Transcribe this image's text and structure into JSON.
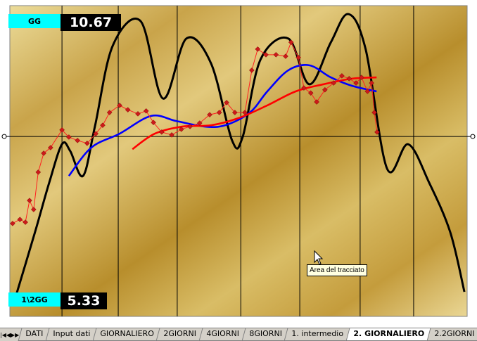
{
  "chart_data": {
    "type": "line",
    "xlim": [
      0,
      100
    ],
    "ylim": [
      0,
      100
    ],
    "xticks": [
      11.4,
      23.7,
      36.6,
      50.5,
      63.4,
      76.6,
      88.3
    ],
    "yticks": [
      57.9
    ],
    "grid": true,
    "series": [
      {
        "name": null,
        "style": "smooth",
        "color": "#000000",
        "x": [
          0.9,
          5.5,
          8.6,
          11.4,
          13.2,
          16.0,
          18.6,
          22.5,
          28.6,
          33.5,
          38.6,
          44.0,
          48.6,
          50.9,
          54.8,
          60.9,
          65.5,
          70.2,
          74.0,
          77.8,
          82.5,
          87.1,
          91.7,
          96.3,
          99.4
        ],
        "values": [
          4.5,
          27.1,
          43.0,
          55.4,
          53.2,
          45.2,
          61.1,
          87.1,
          95.0,
          70.1,
          89.4,
          81.4,
          56.6,
          57.7,
          82.6,
          89.4,
          74.7,
          88.2,
          97.3,
          86.0,
          47.5,
          55.4,
          43.0,
          27.1,
          7.9
        ]
      },
      {
        "name": null,
        "style": "smooth",
        "color": "#0000ff",
        "x": [
          12.9,
          17.8,
          24.0,
          30.9,
          36.3,
          42.5,
          47.1,
          52.5,
          56.3,
          60.9,
          65.5,
          70.2,
          74.8,
          80.2
        ],
        "values": [
          45.2,
          54.3,
          58.8,
          64.5,
          62.9,
          61.1,
          61.5,
          65.6,
          72.4,
          79.2,
          80.8,
          76.9,
          74.2,
          72.4
        ]
      },
      {
        "name": null,
        "style": "smooth",
        "color": "#ff0000",
        "x": [
          26.8,
          31.7,
          37.8,
          44.0,
          50.0,
          56.3,
          62.5,
          68.6,
          74.8,
          80.2
        ],
        "values": [
          53.8,
          58.8,
          61.1,
          61.5,
          63.8,
          67.9,
          72.4,
          74.7,
          76.5,
          76.9
        ]
      },
      {
        "name": null,
        "style": "markers",
        "color": "#cc1a1a",
        "x": [
          0.6,
          2.2,
          3.4,
          4.3,
          5.2,
          6.2,
          7.4,
          8.9,
          11.4,
          12.9,
          14.8,
          16.9,
          18.8,
          20.3,
          21.8,
          24.0,
          25.8,
          28.0,
          29.8,
          31.4,
          33.2,
          35.4,
          37.5,
          39.4,
          41.5,
          43.7,
          45.8,
          47.4,
          49.2,
          51.4,
          52.9,
          54.2,
          56.0,
          58.2,
          60.3,
          61.5,
          63.1,
          64.3,
          65.8,
          67.1,
          68.9,
          70.8,
          72.6,
          74.2,
          75.7,
          76.9,
          78.2,
          79.1,
          79.7,
          80.3
        ],
        "values": [
          29.9,
          31.2,
          30.3,
          37.3,
          34.4,
          46.4,
          52.5,
          54.3,
          60.0,
          57.7,
          56.6,
          55.7,
          58.8,
          61.5,
          65.6,
          67.9,
          66.5,
          65.2,
          66.1,
          62.4,
          59.3,
          58.4,
          60.2,
          61.1,
          62.2,
          64.9,
          65.6,
          68.8,
          65.6,
          65.6,
          79.2,
          86.0,
          84.2,
          84.2,
          83.7,
          88.2,
          83.3,
          73.5,
          71.9,
          69.0,
          72.9,
          75.1,
          77.4,
          76.5,
          75.1,
          76.9,
          72.4,
          75.1,
          65.6,
          59.3
        ]
      }
    ]
  },
  "indicators": [
    {
      "label": "GG",
      "value": "10.67"
    },
    {
      "label": "1\\2GG",
      "value": "5.33"
    }
  ],
  "tooltip": "Area del tracciato",
  "tabs": [
    "DATI",
    "Input dati",
    "GIORNALIERO",
    "2GIORNI",
    "4GIORNI",
    "8GIORNI",
    "1. intermedio",
    "2. GIORNALIERO",
    "2.2GIORNI"
  ],
  "active_tab": 7
}
